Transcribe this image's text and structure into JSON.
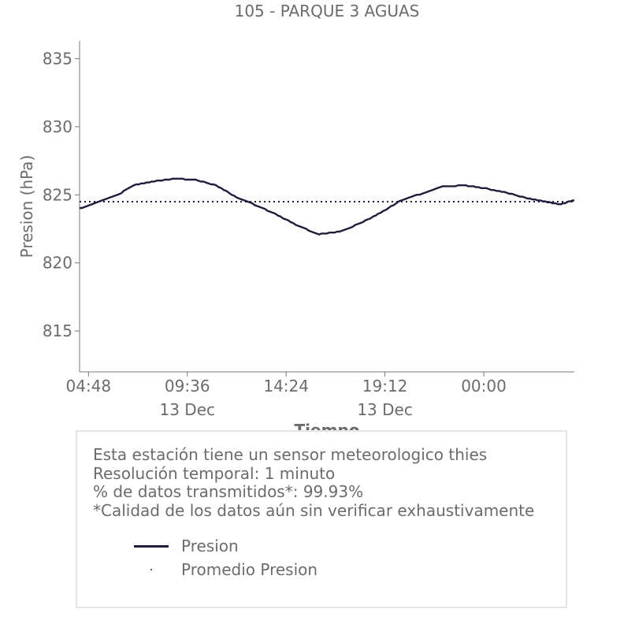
{
  "chart_data": {
    "type": "line",
    "title": "105 - PARQUE 3 AGUAS",
    "xlabel": "Tiempo",
    "ylabel": "Presion (hPa)",
    "ylim": [
      812,
      836.3
    ],
    "xlim": [
      "12 Dec 04:22",
      "13 Dec 04:24"
    ],
    "yticks": [
      815,
      820,
      825,
      830,
      835
    ],
    "xticks": [
      {
        "t": "12 Dec 04:48",
        "label": "04:48",
        "sublabel": ""
      },
      {
        "t": "12 Dec 09:36",
        "label": "09:36",
        "sublabel": "13 Dec"
      },
      {
        "t": "12 Dec 14:24",
        "label": "14:24",
        "sublabel": ""
      },
      {
        "t": "12 Dec 19:12",
        "label": "19:12",
        "sublabel": "13 Dec"
      },
      {
        "t": "13 Dec 00:00",
        "label": "00:00",
        "sublabel": ""
      }
    ],
    "grid": false,
    "series": [
      {
        "name": "Presion",
        "color": "#1e1e3c",
        "points": [
          [
            "12 Dec 04:22",
            824.0
          ],
          [
            "12 Dec 05:20",
            824.5
          ],
          [
            "12 Dec 06:20",
            825.1
          ],
          [
            "12 Dec 07:00",
            825.7
          ],
          [
            "12 Dec 08:00",
            826.0
          ],
          [
            "12 Dec 09:00",
            826.2
          ],
          [
            "12 Dec 10:00",
            826.1
          ],
          [
            "12 Dec 11:00",
            825.7
          ],
          [
            "12 Dec 12:00",
            824.8
          ],
          [
            "12 Dec 13:00",
            824.2
          ],
          [
            "12 Dec 14:00",
            823.5
          ],
          [
            "12 Dec 15:00",
            822.7
          ],
          [
            "12 Dec 16:00",
            822.1
          ],
          [
            "12 Dec 17:00",
            822.3
          ],
          [
            "12 Dec 18:00",
            822.9
          ],
          [
            "12 Dec 19:00",
            823.7
          ],
          [
            "12 Dec 20:00",
            824.6
          ],
          [
            "12 Dec 21:00",
            825.1
          ],
          [
            "12 Dec 22:00",
            825.6
          ],
          [
            "12 Dec 23:00",
            825.7
          ],
          [
            "13 Dec 00:00",
            825.5
          ],
          [
            "13 Dec 01:00",
            825.2
          ],
          [
            "13 Dec 02:00",
            824.8
          ],
          [
            "13 Dec 03:00",
            824.5
          ],
          [
            "13 Dec 03:40",
            824.3
          ],
          [
            "13 Dec 04:24",
            824.6
          ]
        ]
      },
      {
        "name": "Promedio Presion",
        "color": "#1e1e3c",
        "points": [
          [
            "12 Dec 04:22",
            824.5
          ],
          [
            "13 Dec 04:24",
            824.5
          ]
        ]
      }
    ]
  },
  "info": {
    "lines": [
      "Esta estación tiene un sensor meteorologico thies",
      "Resolución temporal: 1 minuto",
      "% de datos transmitidos*: 99.93%",
      "*Calidad de los datos aún sin verificar exhaustivamente"
    ]
  },
  "legend": {
    "items": [
      {
        "label": "Presion",
        "style": "line"
      },
      {
        "label": "Promedio Presion",
        "style": "dot"
      }
    ]
  }
}
